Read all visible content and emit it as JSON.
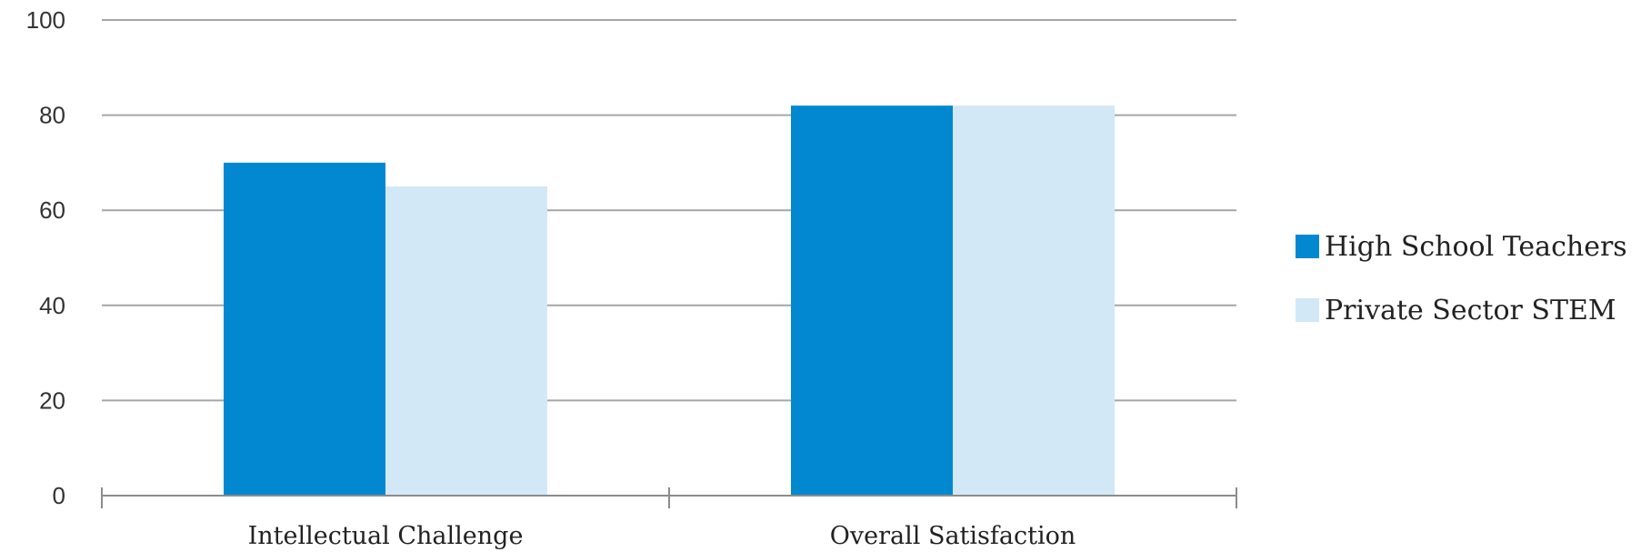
{
  "chart_data": {
    "type": "bar",
    "categories": [
      "Intellectual Challenge",
      "Overall Satisfaction"
    ],
    "series": [
      {
        "name": "High School Teachers",
        "values": [
          70,
          82
        ],
        "color": "#0288d1"
      },
      {
        "name": "Private Sector STEM",
        "values": [
          65,
          82
        ],
        "color": "#d3e8f6"
      }
    ],
    "ylim": [
      0,
      100
    ],
    "yticks": [
      0,
      20,
      40,
      60,
      80,
      100
    ],
    "grid": true,
    "legend_position": "right"
  }
}
